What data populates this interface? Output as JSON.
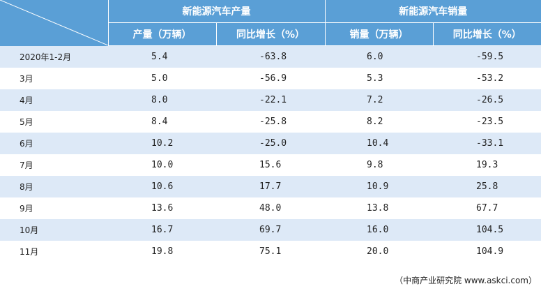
{
  "table": {
    "header": {
      "group_production": "新能源汽车产量",
      "group_sales": "新能源汽车销量",
      "production_col": "产量（万辆）",
      "production_growth_col": "同比增长（%）",
      "sales_col": "销量（万辆）",
      "sales_growth_col": "同比增长（%）"
    },
    "rows": [
      {
        "period": "2020年1-2月",
        "production": "5.4",
        "production_growth": "-63.8",
        "sales": "6.0",
        "sales_growth": "-59.5"
      },
      {
        "period": "3月",
        "production": "5.0",
        "production_growth": "-56.9",
        "sales": "5.3",
        "sales_growth": "-53.2"
      },
      {
        "period": "4月",
        "production": "8.0",
        "production_growth": "-22.1",
        "sales": "7.2",
        "sales_growth": "-26.5"
      },
      {
        "period": "5月",
        "production": "8.4",
        "production_growth": "-25.8",
        "sales": "8.2",
        "sales_growth": "-23.5"
      },
      {
        "period": "6月",
        "production": "10.2",
        "production_growth": "-25.0",
        "sales": "10.4",
        "sales_growth": "-33.1"
      },
      {
        "period": "7月",
        "production": "10.0",
        "production_growth": "15.6",
        "sales": "9.8",
        "sales_growth": "19.3"
      },
      {
        "period": "8月",
        "production": "10.6",
        "production_growth": "17.7",
        "sales": "10.9",
        "sales_growth": "25.8"
      },
      {
        "period": "9月",
        "production": "13.6",
        "production_growth": "48.0",
        "sales": "13.8",
        "sales_growth": "67.7"
      },
      {
        "period": "10月",
        "production": "16.7",
        "production_growth": "69.7",
        "sales": "16.0",
        "sales_growth": "104.5"
      },
      {
        "period": "11月",
        "production": "19.8",
        "production_growth": "75.1",
        "sales": "20.0",
        "sales_growth": "104.9"
      }
    ]
  },
  "footer": {
    "source": "（中商产业研究院 www.askci.com）"
  },
  "colors": {
    "header_bg": "#5a9fd6",
    "stripe_bg": "#dde9f7"
  }
}
